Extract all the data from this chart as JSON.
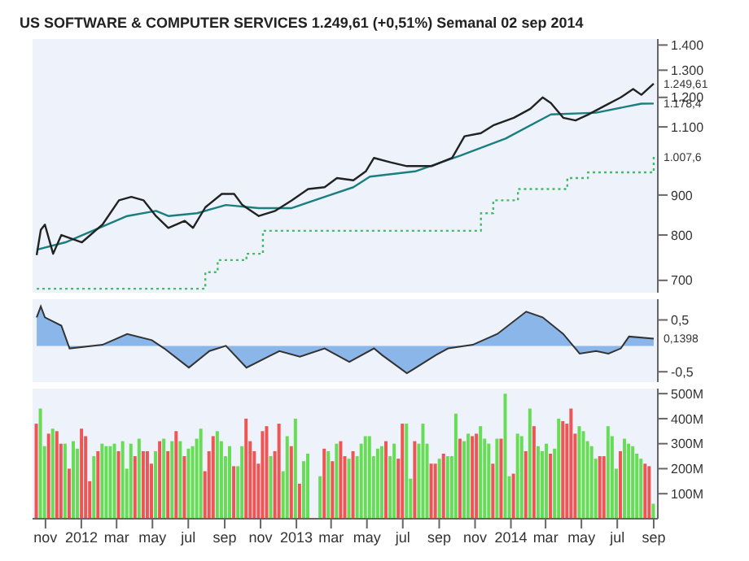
{
  "chart_data": [
    {
      "type": "line",
      "title": "US SOFTWARE & COMPUTER SERVICES   1.249,61 (+0,51%)   Semanal 02 sep 2014",
      "log": "y",
      "tick_labels": "y",
      "xlim": [
        "2011-10-10",
        "2014-09-08"
      ],
      "ylim": [
        675,
        1425
      ],
      "yticks": [
        700,
        800,
        900,
        {
          "value": 1100,
          "label": "1.100"
        },
        {
          "value": 1200,
          "label": "1.200"
        },
        {
          "value": 1300,
          "label": "1.300"
        },
        {
          "value": 1400,
          "label": "1.400"
        }
      ],
      "annotations": [
        {
          "text": "1.249,61",
          "x": "2014-09-01",
          "y": 1249.61
        },
        {
          "text": "1.178,4",
          "x": "2014-09-01",
          "y": 1178.4
        },
        {
          "text": "1.007,6",
          "x": "2014-09-01",
          "y": 1007.6
        }
      ],
      "series": [
        {
          "type": "step",
          "color": "#44bb66",
          "line_style": "dotted",
          "x": [
            "2011-10-17",
            "2012-07-30",
            "2012-08-20",
            "2012-10-08",
            "2012-11-05",
            "2013-11-11",
            "2013-12-02",
            "2014-01-13",
            "2014-04-07",
            "2014-05-12",
            "2014-08-18",
            "2014-09-01"
          ],
          "values": [
            683,
            717,
            743,
            757,
            810,
            853,
            886,
            916,
            946,
            962,
            962,
            1007.6
          ]
        },
        {
          "color": "#1a7f7f",
          "line_style": "solid",
          "x": [
            "2011-10-17",
            "2011-12-05",
            "2012-03-19",
            "2012-05-07",
            "2012-05-28",
            "2012-07-16",
            "2012-09-03",
            "2012-10-29",
            "2012-12-24",
            "2013-02-18",
            "2013-04-08",
            "2013-05-06",
            "2013-07-22",
            "2013-10-07",
            "2013-12-23",
            "2014-03-10",
            "2014-05-26",
            "2014-08-11",
            "2014-09-01"
          ],
          "values": [
            766,
            783,
            846,
            859,
            846,
            853,
            874,
            866,
            866,
            895,
            921,
            950,
            965,
            1011,
            1063,
            1141,
            1147,
            1178,
            1178.4
          ]
        },
        {
          "color": "#222222",
          "line_style": "solid",
          "x": [
            "2011-10-17",
            "2011-10-24",
            "2011-10-31",
            "2011-11-14",
            "2011-11-28",
            "2012-01-02",
            "2012-02-06",
            "2012-03-05",
            "2012-03-26",
            "2012-04-16",
            "2012-05-07",
            "2012-05-28",
            "2012-06-25",
            "2012-07-09",
            "2012-07-30",
            "2012-08-27",
            "2012-09-17",
            "2012-10-01",
            "2012-10-29",
            "2012-11-26",
            "2012-12-24",
            "2013-01-21",
            "2013-02-18",
            "2013-03-11",
            "2013-04-08",
            "2013-04-29",
            "2013-05-13",
            "2013-06-10",
            "2013-07-08",
            "2013-08-19",
            "2013-09-23",
            "2013-10-14",
            "2013-11-11",
            "2013-12-02",
            "2014-01-06",
            "2014-02-03",
            "2014-02-24",
            "2014-03-10",
            "2014-03-31",
            "2014-04-21",
            "2014-05-12",
            "2014-06-09",
            "2014-07-07",
            "2014-07-28",
            "2014-08-11",
            "2014-09-01"
          ],
          "values": [
            754,
            812,
            825,
            757,
            800,
            783,
            825,
            886,
            895,
            886,
            846,
            817,
            834,
            817,
            868,
            903,
            903,
            874,
            846,
            859,
            886,
            916,
            921,
            946,
            940,
            965,
            1004,
            991,
            980,
            980,
            1004,
            1070,
            1080,
            1105,
            1130,
            1160,
            1200,
            1180,
            1130,
            1121,
            1140,
            1170,
            1200,
            1230,
            1209,
            1249.61
          ]
        }
      ]
    },
    {
      "type": "area",
      "tick_labels": "y",
      "xlim": [
        "2011-10-10",
        "2014-09-08"
      ],
      "ylim": [
        -0.7,
        0.9
      ],
      "yticks": [
        {
          "value": 0.5,
          "label": "0,5"
        },
        {
          "value": -0.5,
          "label": "-0,5"
        }
      ],
      "annotations": [
        {
          "text": "0,1398",
          "x": "2014-09-01",
          "y": 0.14
        }
      ],
      "series": [
        {
          "color": "#4a8ee0",
          "x": [
            "2011-10-17",
            "2011-10-24",
            "2011-10-31",
            "2011-11-28",
            "2011-12-12",
            "2012-02-06",
            "2012-03-19",
            "2012-04-30",
            "2012-05-21",
            "2012-07-02",
            "2012-08-06",
            "2012-09-03",
            "2012-10-08",
            "2012-11-19",
            "2012-12-03",
            "2013-01-07",
            "2013-02-18",
            "2013-04-01",
            "2013-05-13",
            "2013-05-27",
            "2013-07-08",
            "2013-08-26",
            "2013-09-16",
            "2013-10-28",
            "2013-12-09",
            "2014-01-27",
            "2014-02-24",
            "2014-03-31",
            "2014-04-28",
            "2014-05-26",
            "2014-06-16",
            "2014-07-07",
            "2014-07-21",
            "2014-09-01"
          ],
          "values": [
            0.55,
            0.76,
            0.55,
            0.39,
            -0.05,
            0.02,
            0.23,
            0.11,
            -0.05,
            -0.42,
            -0.1,
            0,
            -0.42,
            -0.18,
            -0.1,
            -0.21,
            -0.05,
            -0.31,
            -0.05,
            -0.18,
            -0.53,
            -0.18,
            -0.05,
            0.02,
            0.23,
            0.66,
            0.55,
            0.23,
            -0.15,
            -0.1,
            -0.15,
            -0.05,
            0.18,
            0.14
          ]
        }
      ]
    },
    {
      "type": "bar",
      "xlim": [
        "2011-10-10",
        "2014-09-08"
      ],
      "ylim": [
        0,
        520
      ],
      "xticks": [
        {
          "value": "2011-11-01",
          "label": "nov"
        },
        {
          "value": "2012-01-01",
          "label": "2012"
        },
        {
          "value": "2012-03-01",
          "label": "mar"
        },
        {
          "value": "2012-05-01",
          "label": "may"
        },
        {
          "value": "2012-07-01",
          "label": "jul"
        },
        {
          "value": "2012-09-01",
          "label": "sep"
        },
        {
          "value": "2012-11-01",
          "label": "nov"
        },
        {
          "value": "2013-01-01",
          "label": "2013"
        },
        {
          "value": "2013-03-01",
          "label": "mar"
        },
        {
          "value": "2013-05-01",
          "label": "may"
        },
        {
          "value": "2013-07-01",
          "label": "jul"
        },
        {
          "value": "2013-09-01",
          "label": "sep"
        },
        {
          "value": "2013-11-01",
          "label": "nov"
        },
        {
          "value": "2014-01-01",
          "label": "2014"
        },
        {
          "value": "2014-03-01",
          "label": "mar"
        },
        {
          "value": "2014-05-01",
          "label": "may"
        },
        {
          "value": "2014-07-01",
          "label": "jul"
        },
        {
          "value": "2014-09-01",
          "label": "sep"
        }
      ],
      "yticks": [
        {
          "value": 100,
          "label": "100M"
        },
        {
          "value": 200,
          "label": "200M"
        },
        {
          "value": 300,
          "label": "300M"
        },
        {
          "value": 400,
          "label": "400M"
        },
        {
          "value": 500,
          "label": "500M"
        }
      ],
      "x": [
        "2011-10-17",
        "2011-10-24",
        "2011-10-31",
        "2011-11-07",
        "2011-11-14",
        "2011-11-21",
        "2011-11-28",
        "2011-12-05",
        "2011-12-12",
        "2011-12-19",
        "2011-12-26",
        "2012-01-02",
        "2012-01-09",
        "2012-01-16",
        "2012-01-23",
        "2012-01-30",
        "2012-02-06",
        "2012-02-13",
        "2012-02-20",
        "2012-02-27",
        "2012-03-05",
        "2012-03-12",
        "2012-03-19",
        "2012-03-26",
        "2012-04-02",
        "2012-04-09",
        "2012-04-16",
        "2012-04-23",
        "2012-04-30",
        "2012-05-07",
        "2012-05-14",
        "2012-05-21",
        "2012-05-28",
        "2012-06-04",
        "2012-06-11",
        "2012-06-18",
        "2012-06-25",
        "2012-07-02",
        "2012-07-09",
        "2012-07-16",
        "2012-07-23",
        "2012-07-30",
        "2012-08-06",
        "2012-08-13",
        "2012-08-20",
        "2012-08-27",
        "2012-09-03",
        "2012-09-10",
        "2012-09-17",
        "2012-09-24",
        "2012-10-01",
        "2012-10-08",
        "2012-10-15",
        "2012-10-22",
        "2012-10-29",
        "2012-11-05",
        "2012-11-12",
        "2012-11-19",
        "2012-11-26",
        "2012-12-03",
        "2012-12-10",
        "2012-12-17",
        "2012-12-24",
        "2012-12-31",
        "2013-01-07",
        "2013-01-14",
        "2013-01-21",
        "2013-01-28",
        "2013-02-04",
        "2013-02-11",
        "2013-02-18",
        "2013-02-25",
        "2013-03-04",
        "2013-03-11",
        "2013-03-18",
        "2013-03-25",
        "2013-04-01",
        "2013-04-08",
        "2013-04-15",
        "2013-04-22",
        "2013-04-29",
        "2013-05-06",
        "2013-05-13",
        "2013-05-20",
        "2013-05-27",
        "2013-06-03",
        "2013-06-10",
        "2013-06-17",
        "2013-06-24",
        "2013-07-01",
        "2013-07-08",
        "2013-07-15",
        "2013-07-22",
        "2013-07-29",
        "2013-08-05",
        "2013-08-12",
        "2013-08-19",
        "2013-08-26",
        "2013-09-02",
        "2013-09-09",
        "2013-09-16",
        "2013-09-23",
        "2013-09-30",
        "2013-10-07",
        "2013-10-14",
        "2013-10-21",
        "2013-10-28",
        "2013-11-04",
        "2013-11-11",
        "2013-11-18",
        "2013-11-25",
        "2013-12-02",
        "2013-12-09",
        "2013-12-16",
        "2013-12-23",
        "2013-12-30",
        "2014-01-06",
        "2014-01-13",
        "2014-01-20",
        "2014-01-27",
        "2014-02-03",
        "2014-02-10",
        "2014-02-17",
        "2014-02-24",
        "2014-03-03",
        "2014-03-10",
        "2014-03-17",
        "2014-03-24",
        "2014-03-31",
        "2014-04-07",
        "2014-04-14",
        "2014-04-21",
        "2014-04-28",
        "2014-05-05",
        "2014-05-12",
        "2014-05-19",
        "2014-05-26",
        "2014-06-02",
        "2014-06-09",
        "2014-06-16",
        "2014-06-23",
        "2014-06-30",
        "2014-07-07",
        "2014-07-14",
        "2014-07-21",
        "2014-07-28",
        "2014-08-04",
        "2014-08-11",
        "2014-08-18",
        "2014-08-25",
        "2014-09-01"
      ],
      "values": [
        380,
        440,
        290,
        340,
        360,
        350,
        300,
        300,
        200,
        310,
        280,
        360,
        330,
        150,
        250,
        270,
        300,
        290,
        290,
        300,
        270,
        310,
        200,
        300,
        250,
        320,
        270,
        270,
        220,
        270,
        310,
        320,
        270,
        310,
        350,
        310,
        250,
        280,
        290,
        320,
        360,
        190,
        270,
        330,
        350,
        310,
        250,
        290,
        210,
        210,
        290,
        400,
        310,
        270,
        220,
        350,
        370,
        250,
        270,
        380,
        190,
        330,
        290,
        400,
        140,
        230,
        260,
        null,
        null,
        170,
        280,
        270,
        230,
        300,
        310,
        250,
        240,
        270,
        250,
        300,
        330,
        330,
        250,
        280,
        290,
        310,
        250,
        300,
        240,
        380,
        380,
        160,
        310,
        300,
        380,
        300,
        220,
        220,
        240,
        260,
        250,
        250,
        420,
        320,
        310,
        340,
        330,
        340,
        370,
        320,
        300,
        220,
        320,
        320,
        500,
        170,
        180,
        340,
        330,
        270,
        440,
        370,
        290,
        270,
        300,
        260,
        280,
        400,
        390,
        380,
        440,
        340,
        370,
        350,
        310,
        290,
        240,
        250,
        250,
        370,
        330,
        200,
        270,
        320,
        300,
        290,
        260,
        240,
        220,
        210,
        60
      ],
      "colors": [
        "#ee5555",
        "#66dd55",
        "#66dd55",
        "#ee5555",
        "#66dd55",
        "#ee5555",
        "#ee5555",
        "#66dd55",
        "#ee5555",
        "#66dd55",
        "#66dd55",
        "#ee5555",
        "#ee5555",
        "#ee5555",
        "#66dd55",
        "#ee5555",
        "#66dd55",
        "#66dd55",
        "#66dd55",
        "#66dd55",
        "#ee5555",
        "#66dd55",
        "#66dd55",
        "#66dd55",
        "#ee5555",
        "#66dd55",
        "#ee5555",
        "#ee5555",
        "#ee5555",
        "#66dd55",
        "#ee5555",
        "#66dd55",
        "#ee5555",
        "#66dd55",
        "#ee5555",
        "#66dd55",
        "#ee5555",
        "#66dd55",
        "#66dd55",
        "#66dd55",
        "#66dd55",
        "#ee5555",
        "#ee5555",
        "#ee5555",
        "#66dd55",
        "#66dd55",
        "#66dd55",
        "#66dd55",
        "#ee5555",
        "#66dd55",
        "#66dd55",
        "#ee5555",
        "#ee5555",
        "#ee5555",
        "#ee5555",
        "#ee5555",
        "#ee5555",
        "#66dd55",
        "#ee5555",
        "#ee5555",
        "#66dd55",
        "#66dd55",
        "#ee5555",
        "#66dd55",
        "#ee5555",
        "#66dd55",
        "#66dd55",
        "#66dd55",
        "#66dd55",
        "#66dd55",
        "#ee5555",
        "#66dd55",
        "#ee5555",
        "#66dd55",
        "#ee5555",
        "#ee5555",
        "#66dd55",
        "#ee5555",
        "#66dd55",
        "#66dd55",
        "#66dd55",
        "#66dd55",
        "#66dd55",
        "#66dd55",
        "#66dd55",
        "#ee5555",
        "#66dd55",
        "#66dd55",
        "#ee5555",
        "#ee5555",
        "#66dd55",
        "#66dd55",
        "#ee5555",
        "#66dd55",
        "#66dd55",
        "#66dd55",
        "#ee5555",
        "#ee5555",
        "#66dd55",
        "#ee5555",
        "#66dd55",
        "#66dd55",
        "#66dd55",
        "#ee5555",
        "#66dd55",
        "#66dd55",
        "#ee5555",
        "#ee5555",
        "#66dd55",
        "#66dd55",
        "#66dd55",
        "#ee5555",
        "#66dd55",
        "#ee5555",
        "#66dd55",
        "#66dd55",
        "#ee5555",
        "#66dd55",
        "#66dd55",
        "#ee5555",
        "#66dd55",
        "#ee5555",
        "#66dd55",
        "#66dd55",
        "#66dd55",
        "#ee5555",
        "#66dd55",
        "#66dd55",
        "#ee5555",
        "#ee5555",
        "#ee5555",
        "#ee5555",
        "#66dd55",
        "#66dd55",
        "#66dd55",
        "#66dd55",
        "#66dd55",
        "#ee5555",
        "#ee5555",
        "#66dd55",
        "#66dd55",
        "#66dd55",
        "#ee5555",
        "#66dd55",
        "#66dd55",
        "#66dd55",
        "#66dd55",
        "#66dd55",
        "#ee5555",
        "#ee5555",
        "#66dd55"
      ]
    }
  ]
}
